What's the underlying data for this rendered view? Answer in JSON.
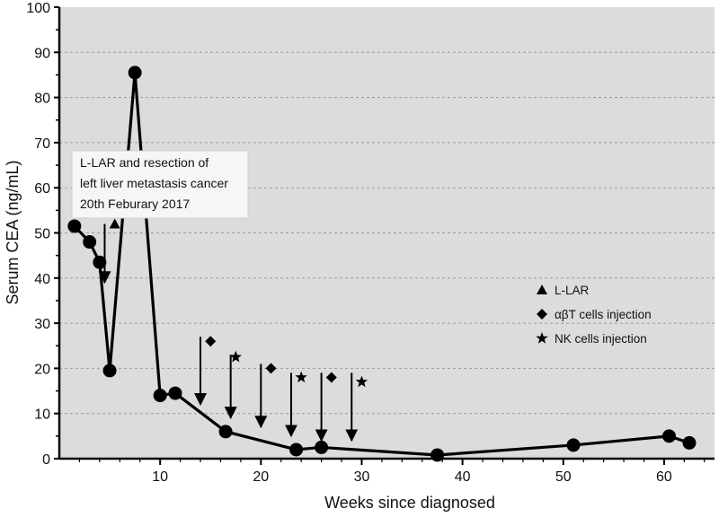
{
  "chart_data": {
    "type": "line",
    "xlabel": "Weeks since diagnosed",
    "ylabel": "Serum CEA (ng/mL)",
    "xlim": [
      0,
      65
    ],
    "ylim": [
      0,
      100
    ],
    "xticks": [
      10,
      20,
      30,
      40,
      50,
      60
    ],
    "yticks": [
      0,
      10,
      20,
      30,
      40,
      50,
      60,
      70,
      80,
      90,
      100
    ],
    "grid": "horizontal dashed",
    "plot_background": "#dcdcdc",
    "series": [
      {
        "x": [
          1.5,
          3,
          4,
          5,
          7.5,
          10,
          11.5,
          16.5,
          23.5,
          26,
          37.5,
          51,
          60.5,
          62.5
        ],
        "y": [
          51.5,
          48,
          43.5,
          19.5,
          85.5,
          14,
          14.5,
          6,
          2,
          2.5,
          0.8,
          3,
          5,
          3.5
        ],
        "color": "#000000"
      }
    ],
    "annotation_box": {
      "lines": [
        "L-LAR and resection of",
        "left liver metastasis cancer",
        "20th Feburary 2017"
      ],
      "anchor_x": 4,
      "anchor_y": 58
    },
    "markers": [
      {
        "symbol": "triangle",
        "x": 5.5,
        "y": 52
      },
      {
        "symbol": "diamond",
        "x": 15,
        "y": 26
      },
      {
        "symbol": "star",
        "x": 17.5,
        "y": 22.5
      },
      {
        "symbol": "diamond",
        "x": 21,
        "y": 20
      },
      {
        "symbol": "star",
        "x": 24,
        "y": 18
      },
      {
        "symbol": "diamond",
        "x": 27,
        "y": 18
      },
      {
        "symbol": "star",
        "x": 30,
        "y": 17
      }
    ],
    "arrows": [
      {
        "x": 4.5,
        "y_from": 52,
        "y_to": 39
      },
      {
        "x": 14,
        "y_from": 27,
        "y_to": 12
      },
      {
        "x": 17,
        "y_from": 23,
        "y_to": 9
      },
      {
        "x": 20,
        "y_from": 21,
        "y_to": 7
      },
      {
        "x": 23,
        "y_from": 19,
        "y_to": 5
      },
      {
        "x": 26,
        "y_from": 19,
        "y_to": 4
      },
      {
        "x": 29,
        "y_from": 19,
        "y_to": 4
      }
    ],
    "legend": {
      "placement": "right",
      "items": [
        {
          "symbol": "triangle",
          "label": "L-LAR"
        },
        {
          "symbol": "diamond",
          "label": "αβT cells injection"
        },
        {
          "symbol": "star",
          "label": "NK cells injection"
        }
      ]
    }
  }
}
